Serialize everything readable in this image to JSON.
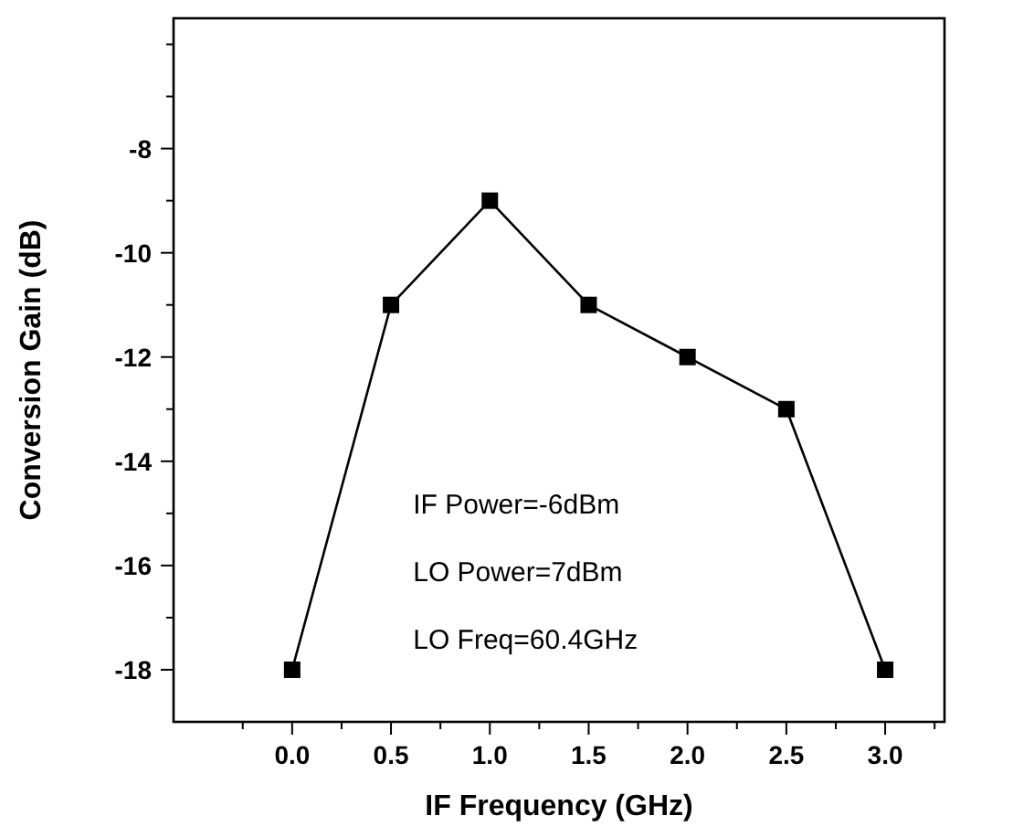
{
  "chart_data": {
    "type": "line",
    "xlabel": "IF Frequency (GHz)",
    "ylabel": "Conversion Gain (dB)",
    "x": [
      0.0,
      0.5,
      1.0,
      1.5,
      2.0,
      2.5,
      3.0
    ],
    "series": [
      {
        "color": "#000000",
        "values": [
          -18,
          -11,
          -9,
          -11,
          -12,
          -13,
          -18
        ]
      }
    ],
    "marker": "square",
    "line_style": "solid",
    "grid": false,
    "xlim": [
      -0.6,
      3.3
    ],
    "xticks": [
      {
        "value": -0.25,
        "label": null
      },
      {
        "value": 0,
        "label": "0.0"
      },
      {
        "value": 0.25,
        "label": null
      },
      0.5,
      {
        "value": 0.75,
        "label": null
      },
      {
        "value": 1,
        "label": "1.0"
      },
      {
        "value": 1.25,
        "label": null
      },
      1.5,
      {
        "value": 1.75,
        "label": null
      },
      {
        "value": 2,
        "label": "2.0"
      },
      {
        "value": 2.25,
        "label": null
      },
      2.5,
      {
        "value": 2.75,
        "label": null
      },
      {
        "value": 3,
        "label": "3.0"
      },
      {
        "value": 3.25,
        "label": null
      }
    ],
    "ylim": [
      -19,
      -5.5
    ],
    "yticks": [
      -18,
      {
        "value": -17,
        "label": null
      },
      -16,
      {
        "value": -15,
        "label": null
      },
      -14,
      {
        "value": -13,
        "label": null
      },
      -12,
      {
        "value": -11,
        "label": null
      },
      -10,
      {
        "value": -9,
        "label": null
      },
      -8,
      {
        "value": -7,
        "label": null
      },
      {
        "value": -6,
        "label": null
      }
    ],
    "annotations": [
      "IF Power=-6dBm",
      "LO Power=7dBm",
      "LO Freq=60.4GHz"
    ]
  }
}
